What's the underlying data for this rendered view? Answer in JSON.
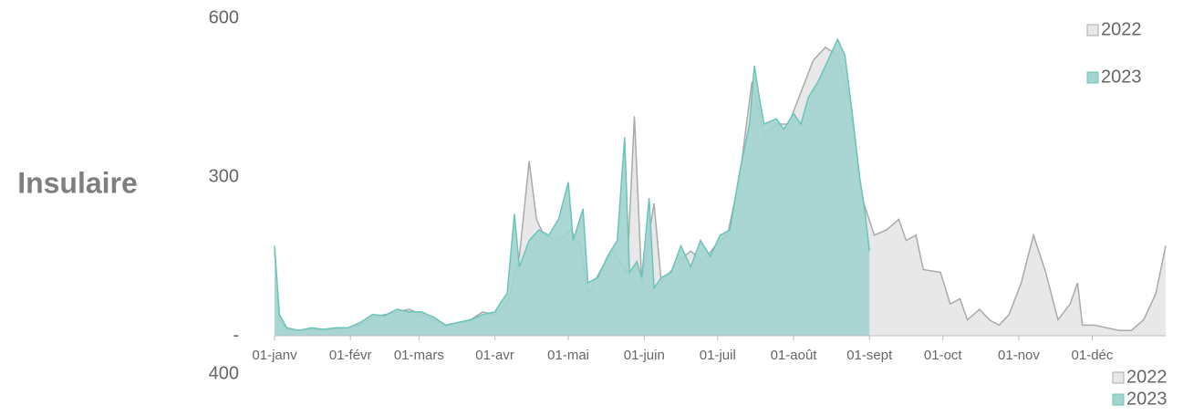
{
  "chart_data": [
    {
      "type": "area",
      "title": "Insulaire",
      "legend": "top-right",
      "xlim": [
        0,
        364
      ],
      "ylim": [
        0,
        600
      ],
      "yticks": [
        {
          "value": 0,
          "label": "-"
        },
        300,
        600
      ],
      "xticks": [
        {
          "value": 0,
          "label": "01-janv"
        },
        {
          "value": 31,
          "label": "01-févr"
        },
        {
          "value": 59,
          "label": "01-mars"
        },
        {
          "value": 90,
          "label": "01-avr"
        },
        {
          "value": 120,
          "label": "01-mai"
        },
        {
          "value": 151,
          "label": "01-juin"
        },
        {
          "value": 181,
          "label": "01-juil"
        },
        {
          "value": 212,
          "label": "01-août"
        },
        {
          "value": 243,
          "label": "01-sept"
        },
        {
          "value": 273,
          "label": "01-oct"
        },
        {
          "value": 304,
          "label": "01-nov"
        },
        {
          "value": 334,
          "label": "01-déc"
        }
      ],
      "series": [
        {
          "name": "2022",
          "color": "#aaaaaa",
          "fill": "#e8e8e8",
          "x": [
            0,
            2,
            5,
            10,
            15,
            20,
            25,
            30,
            35,
            40,
            45,
            50,
            55,
            60,
            65,
            70,
            75,
            80,
            85,
            90,
            95,
            100,
            104,
            107,
            110,
            116,
            121,
            125,
            128,
            134,
            138,
            144,
            147,
            150,
            155,
            158,
            165,
            170,
            175,
            180,
            185,
            190,
            195,
            200,
            205,
            210,
            215,
            220,
            225,
            230,
            235,
            240,
            245,
            250,
            255,
            258,
            262,
            265,
            272,
            276,
            280,
            283,
            288,
            292,
            296,
            300,
            305,
            310,
            315,
            320,
            325,
            328,
            330,
            335,
            340,
            345,
            350,
            355,
            360,
            364
          ],
          "values": [
            160,
            30,
            12,
            10,
            12,
            10,
            12,
            15,
            20,
            35,
            40,
            45,
            50,
            40,
            30,
            20,
            25,
            30,
            45,
            40,
            60,
            150,
            330,
            220,
            190,
            180,
            200,
            170,
            80,
            130,
            160,
            120,
            415,
            100,
            250,
            100,
            140,
            160,
            140,
            170,
            190,
            300,
            480,
            380,
            400,
            400,
            460,
            520,
            545,
            530,
            440,
            260,
            190,
            200,
            220,
            180,
            190,
            125,
            120,
            60,
            70,
            30,
            50,
            30,
            20,
            40,
            100,
            190,
            120,
            30,
            60,
            100,
            20,
            20,
            15,
            10,
            10,
            30,
            80,
            170
          ]
        },
        {
          "name": "2023",
          "color": "#6cc4b9",
          "fill": "#a3d4cf",
          "x": [
            0,
            2,
            5,
            10,
            15,
            20,
            25,
            30,
            35,
            40,
            45,
            50,
            55,
            60,
            65,
            70,
            75,
            80,
            85,
            90,
            92,
            95,
            98,
            100,
            104,
            108,
            112,
            116,
            120,
            122,
            126,
            128,
            132,
            136,
            140,
            143,
            145,
            148,
            150,
            153,
            155,
            158,
            162,
            166,
            170,
            174,
            178,
            182,
            186,
            190,
            194,
            196,
            198,
            200,
            205,
            208,
            212,
            215,
            218,
            222,
            226,
            230,
            233,
            236,
            239,
            241,
            243
          ],
          "values": [
            170,
            40,
            15,
            10,
            15,
            12,
            15,
            15,
            25,
            40,
            38,
            50,
            45,
            45,
            35,
            20,
            25,
            30,
            40,
            45,
            60,
            80,
            230,
            130,
            180,
            200,
            190,
            220,
            290,
            180,
            240,
            100,
            110,
            150,
            180,
            375,
            120,
            140,
            110,
            260,
            90,
            110,
            120,
            170,
            130,
            180,
            150,
            190,
            200,
            310,
            400,
            510,
            450,
            400,
            410,
            390,
            420,
            400,
            450,
            480,
            520,
            560,
            530,
            420,
            300,
            240,
            160
          ]
        }
      ]
    },
    {
      "type": "area",
      "yticks": [
        400
      ],
      "legend": "top-right",
      "series": [
        {
          "name": "2022",
          "color": "#aaaaaa",
          "fill": "#e8e8e8",
          "x": [],
          "values": []
        },
        {
          "name": "2023",
          "color": "#6cc4b9",
          "fill": "#a3d4cf",
          "x": [],
          "values": []
        }
      ]
    }
  ]
}
